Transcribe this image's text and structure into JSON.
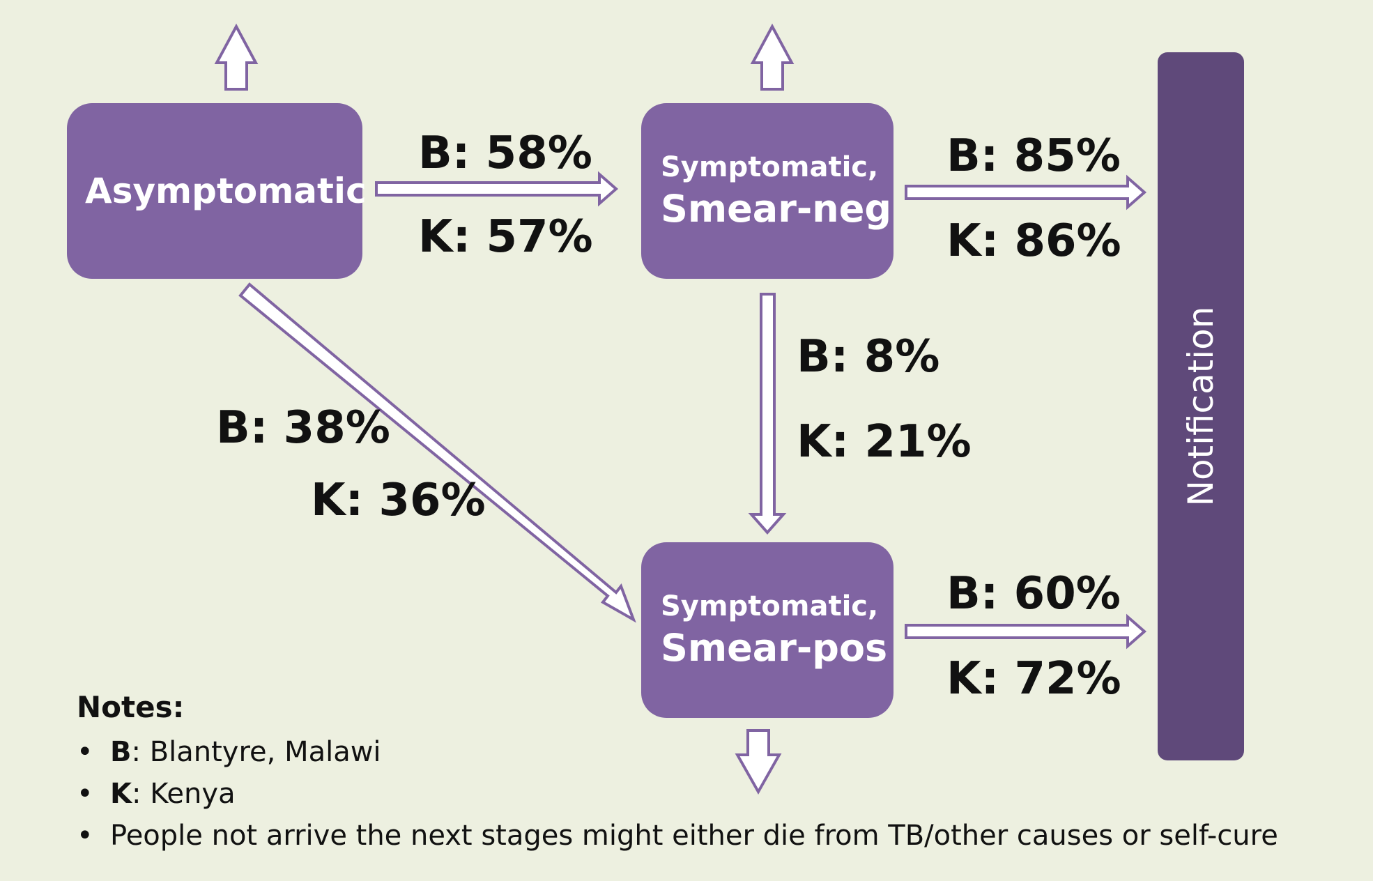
{
  "nodes": {
    "asymptomatic": {
      "label": "Asymptomatic"
    },
    "smear_neg": {
      "line1": "Symptomatic,",
      "line2": "Smear-neg"
    },
    "smear_pos": {
      "line1": "Symptomatic,",
      "line2": "Smear-pos"
    },
    "notification": {
      "label": "Notification"
    }
  },
  "edges": {
    "asym_to_neg": {
      "b": "B: 58%",
      "k": "K: 57%"
    },
    "neg_to_notif": {
      "b": "B: 85%",
      "k": "K: 86%"
    },
    "neg_to_pos": {
      "b": "B: 8%",
      "k": "K: 21%"
    },
    "asym_to_pos": {
      "b": "B: 38%",
      "k": "K: 36%"
    },
    "pos_to_notif": {
      "b": "B: 60%",
      "k": "K: 72%"
    }
  },
  "notes": {
    "title": "Notes:",
    "items": [
      {
        "key": "B",
        "text": ": Blantyre, Malawi"
      },
      {
        "key": "K",
        "text": ": Kenya"
      },
      {
        "key": "",
        "text": "People not arrive the next stages might either die from TB/other causes or self-cure"
      }
    ]
  },
  "colors": {
    "background": "#edf0e0",
    "node_fill": "#8064a2",
    "notification_fill": "#5f497a",
    "arrow_stroke": "#8064a2",
    "arrow_fill": "#ffffff"
  }
}
